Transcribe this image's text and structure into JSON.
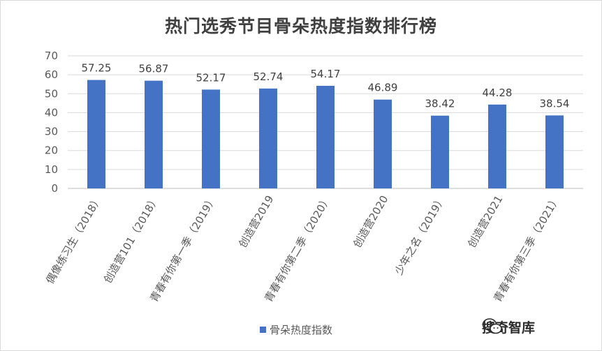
{
  "chart_data": {
    "type": "bar",
    "title": "热门选秀节目骨朵热度指数排行榜",
    "categories": [
      "偶像练习生（2018）",
      "创造营101（2018）",
      "青春有你第一季（2019）",
      "创造营2019",
      "青春有你第二季（2020）",
      "创造营2020",
      "少年之名（2019）",
      "创造营2021",
      "青春有你第三季（2021）"
    ],
    "series": [
      {
        "name": "骨朵热度指数",
        "values": [
          57.25,
          56.87,
          52.17,
          52.74,
          54.17,
          46.89,
          38.42,
          44.28,
          38.54
        ],
        "color": "#4472c4"
      }
    ],
    "value_labels": [
      "57.25",
      "56.87",
      "52.17",
      "52.74",
      "54.17",
      "46.89",
      "38.42",
      "44.28",
      "38.54"
    ],
    "ylim": [
      0,
      70
    ],
    "yticks": [
      "0",
      "10",
      "20",
      "30",
      "40",
      "50",
      "60",
      "70"
    ],
    "grid": true,
    "legend": "bottom"
  },
  "legend": {
    "label": "骨朵热度指数"
  },
  "watermark": {
    "text": "搜奇智库",
    "icon": "wechat-icon"
  }
}
